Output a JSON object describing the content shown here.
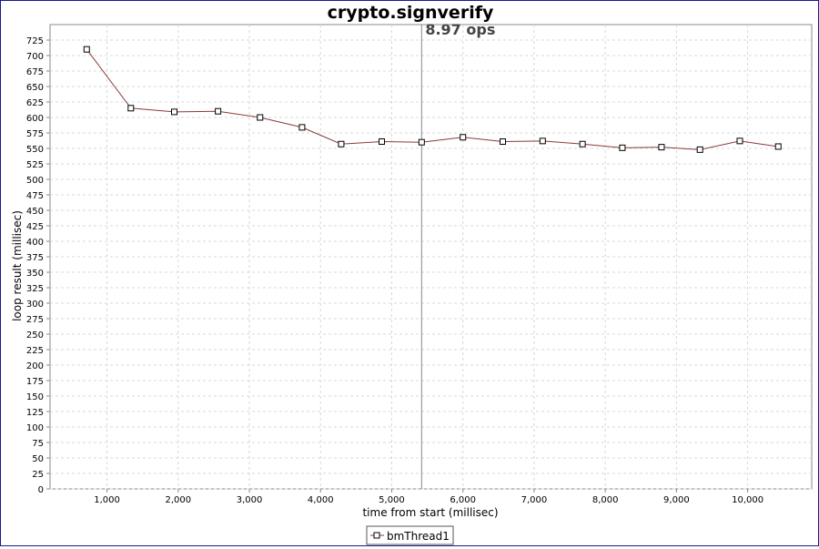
{
  "chart_data": {
    "type": "line",
    "title": "crypto.signverify",
    "xlabel": "time from start (millisec)",
    "ylabel": "loop result (millisec)",
    "xlim": [
      200,
      10900
    ],
    "ylim": [
      0,
      750
    ],
    "x_ticks": [
      1000,
      2000,
      3000,
      4000,
      5000,
      6000,
      7000,
      8000,
      9000,
      10000
    ],
    "x_tick_labels": [
      "1,000",
      "2,000",
      "3,000",
      "4,000",
      "5,000",
      "6,000",
      "7,000",
      "8,000",
      "9,000",
      "10,000"
    ],
    "y_ticks": [
      0,
      25,
      50,
      75,
      100,
      125,
      150,
      175,
      200,
      225,
      250,
      275,
      300,
      325,
      350,
      375,
      400,
      425,
      450,
      475,
      500,
      525,
      550,
      575,
      600,
      625,
      650,
      675,
      700,
      725
    ],
    "grid": true,
    "marker_line": {
      "x": 5420,
      "label": "8.97 ops"
    },
    "series": [
      {
        "name": "bmThread1",
        "color": "#8b3a3a",
        "x": [
          715,
          1335,
          1945,
          2560,
          3150,
          3740,
          4290,
          4860,
          5420,
          6000,
          6560,
          7120,
          7680,
          8240,
          8790,
          9330,
          9890,
          10430
        ],
        "y": [
          710,
          615,
          609,
          610,
          600,
          584,
          557,
          561,
          560,
          568,
          561,
          562,
          557,
          551,
          552,
          548,
          562,
          553
        ]
      }
    ],
    "legend": {
      "position": "bottom-center"
    }
  }
}
